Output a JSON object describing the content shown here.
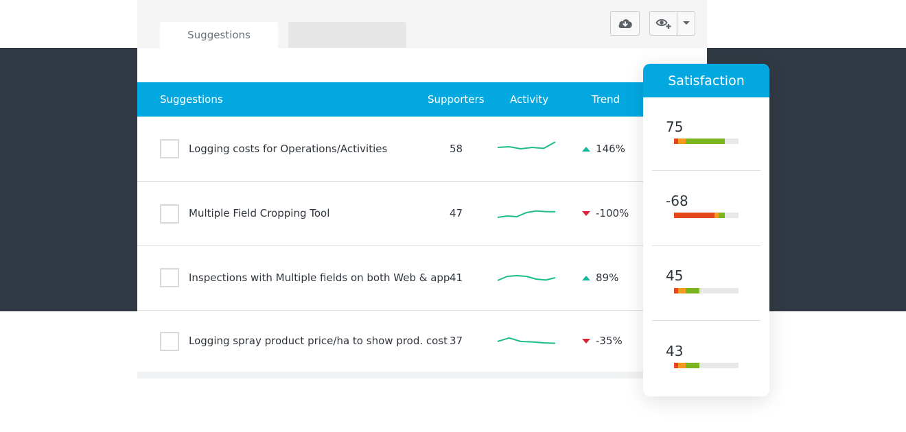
{
  "colors": {
    "accent": "#03a8e1",
    "dark_band": "#313a44",
    "trend_up": "#15b79a",
    "trend_down": "#d8243c",
    "spark": "#1cbc8c",
    "bar_red": "#e3471b",
    "bar_orange": "#f39a1f",
    "bar_green": "#7bb51c",
    "bar_track": "#e8e8e8"
  },
  "tabs": [
    {
      "label": "Suggestions",
      "active": true
    },
    {
      "label": "",
      "active": false
    }
  ],
  "toolbar": {
    "download_icon": "cloud-download-icon",
    "view_icon": "eye-plus-icon",
    "caret_icon": "caret-down-icon"
  },
  "table": {
    "headers": {
      "suggestions": "Suggestions",
      "supporters": "Supporters",
      "activity": "Activity",
      "trend": "Trend"
    },
    "rows": [
      {
        "title": "Logging costs for Operations/Activities",
        "supporters": "58",
        "trend": "146%",
        "direction": "up",
        "activity": [
          5,
          5.5,
          4,
          5,
          4.3,
          9
        ]
      },
      {
        "title": "Multiple Field Cropping Tool",
        "supporters": "47",
        "trend": "-100%",
        "direction": "down",
        "activity": [
          2,
          3,
          2.5,
          5.5,
          6.7,
          6.2,
          6.1
        ]
      },
      {
        "title": "Inspections with Multiple fields on both Web & app",
        "supporters": "41",
        "trend": "89%",
        "direction": "up",
        "activity": [
          2,
          5,
          5.5,
          5,
          3,
          2.3,
          4
        ]
      },
      {
        "title": "Logging spray product price/ha to show prod. cost",
        "supporters": "37",
        "trend": "-35%",
        "direction": "down",
        "activity": [
          5,
          7.6,
          5,
          4.7,
          4,
          3.7
        ]
      }
    ]
  },
  "satisfaction": {
    "title": "Satisfaction",
    "items": [
      {
        "value": "75",
        "bar": {
          "red": 6,
          "orange": 12,
          "green": 61
        }
      },
      {
        "value": "-68",
        "bar": {
          "red": 63,
          "orange": 6,
          "green": 10
        }
      },
      {
        "value": "45",
        "bar": {
          "red": 6,
          "orange": 12,
          "green": 21
        }
      },
      {
        "value": "43",
        "bar": {
          "red": 6,
          "orange": 12,
          "green": 21
        }
      }
    ]
  }
}
